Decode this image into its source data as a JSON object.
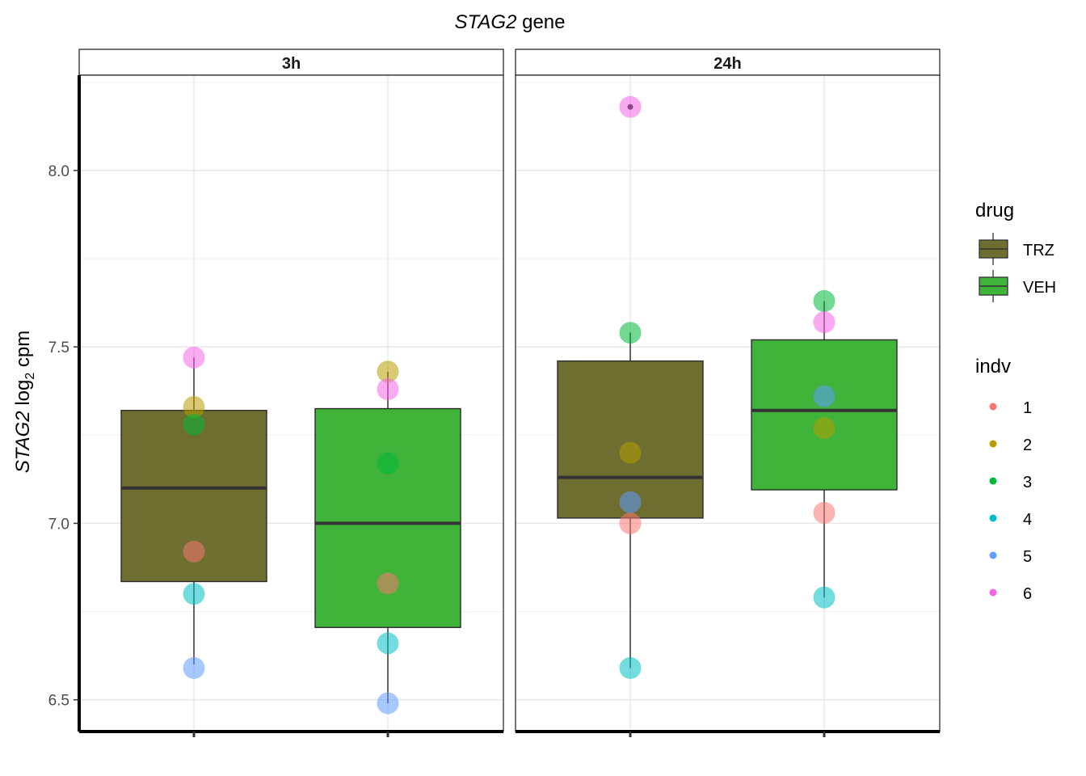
{
  "chart_data": {
    "type": "box",
    "title_gene": "STAG2",
    "title_suffix": " gene",
    "ylabel_gene": "STAG2",
    "ylabel_log": " log",
    "ylabel_sub": "2",
    "ylabel_unit": " cpm",
    "ylim": [
      6.41,
      8.27
    ],
    "yticks": [
      6.5,
      7.0,
      7.5,
      8.0
    ],
    "ytick_labels": [
      "6.5",
      "7.0",
      "7.5",
      "8.0"
    ],
    "grid": true,
    "x_tick_labels_shown": false,
    "facets": [
      {
        "label": "3h",
        "groups": [
          {
            "drug": "TRZ",
            "box": {
              "min": 6.6,
              "q1": 6.835,
              "median": 7.1,
              "q3": 7.32,
              "max": 7.47
            },
            "points": [
              {
                "indv": "1",
                "y": 6.92
              },
              {
                "indv": "2",
                "y": 7.33
              },
              {
                "indv": "3",
                "y": 7.28
              },
              {
                "indv": "4",
                "y": 6.8
              },
              {
                "indv": "5",
                "y": 6.59
              },
              {
                "indv": "6",
                "y": 7.47
              }
            ]
          },
          {
            "drug": "VEH",
            "box": {
              "min": 6.49,
              "q1": 6.705,
              "median": 7.0,
              "q3": 7.325,
              "max": 7.43
            },
            "points": [
              {
                "indv": "1",
                "y": 6.83
              },
              {
                "indv": "2",
                "y": 7.43
              },
              {
                "indv": "3",
                "y": 7.17
              },
              {
                "indv": "4",
                "y": 6.66
              },
              {
                "indv": "5",
                "y": 6.49
              },
              {
                "indv": "6",
                "y": 7.38
              }
            ]
          }
        ]
      },
      {
        "label": "24h",
        "groups": [
          {
            "drug": "TRZ",
            "box": {
              "min": 6.59,
              "q1": 7.015,
              "median": 7.13,
              "q3": 7.46,
              "max": 7.54
            },
            "outliers": [
              8.18
            ],
            "points": [
              {
                "indv": "1",
                "y": 7.0
              },
              {
                "indv": "2",
                "y": 7.2
              },
              {
                "indv": "3",
                "y": 7.54
              },
              {
                "indv": "4",
                "y": 6.59
              },
              {
                "indv": "5",
                "y": 7.06
              },
              {
                "indv": "6",
                "y": 8.18
              }
            ]
          },
          {
            "drug": "VEH",
            "box": {
              "min": 6.79,
              "q1": 7.095,
              "median": 7.32,
              "q3": 7.52,
              "max": 7.63
            },
            "points": [
              {
                "indv": "1",
                "y": 7.03
              },
              {
                "indv": "2",
                "y": 7.27
              },
              {
                "indv": "3",
                "y": 7.63
              },
              {
                "indv": "4",
                "y": 6.79
              },
              {
                "indv": "5",
                "y": 7.36
              },
              {
                "indv": "6",
                "y": 7.57
              }
            ]
          }
        ]
      }
    ],
    "legend_drug": {
      "title": "drug",
      "items": [
        {
          "label": "TRZ",
          "color": "#6E6E31"
        },
        {
          "label": "VEH",
          "color": "#3FB33A"
        }
      ]
    },
    "legend_indv": {
      "title": "indv",
      "items": [
        {
          "label": "1",
          "color": "#F8766D"
        },
        {
          "label": "2",
          "color": "#B79F00"
        },
        {
          "label": "3",
          "color": "#00BA38"
        },
        {
          "label": "4",
          "color": "#00BFC4"
        },
        {
          "label": "5",
          "color": "#619CFF"
        },
        {
          "label": "6",
          "color": "#F564E3"
        }
      ]
    }
  }
}
